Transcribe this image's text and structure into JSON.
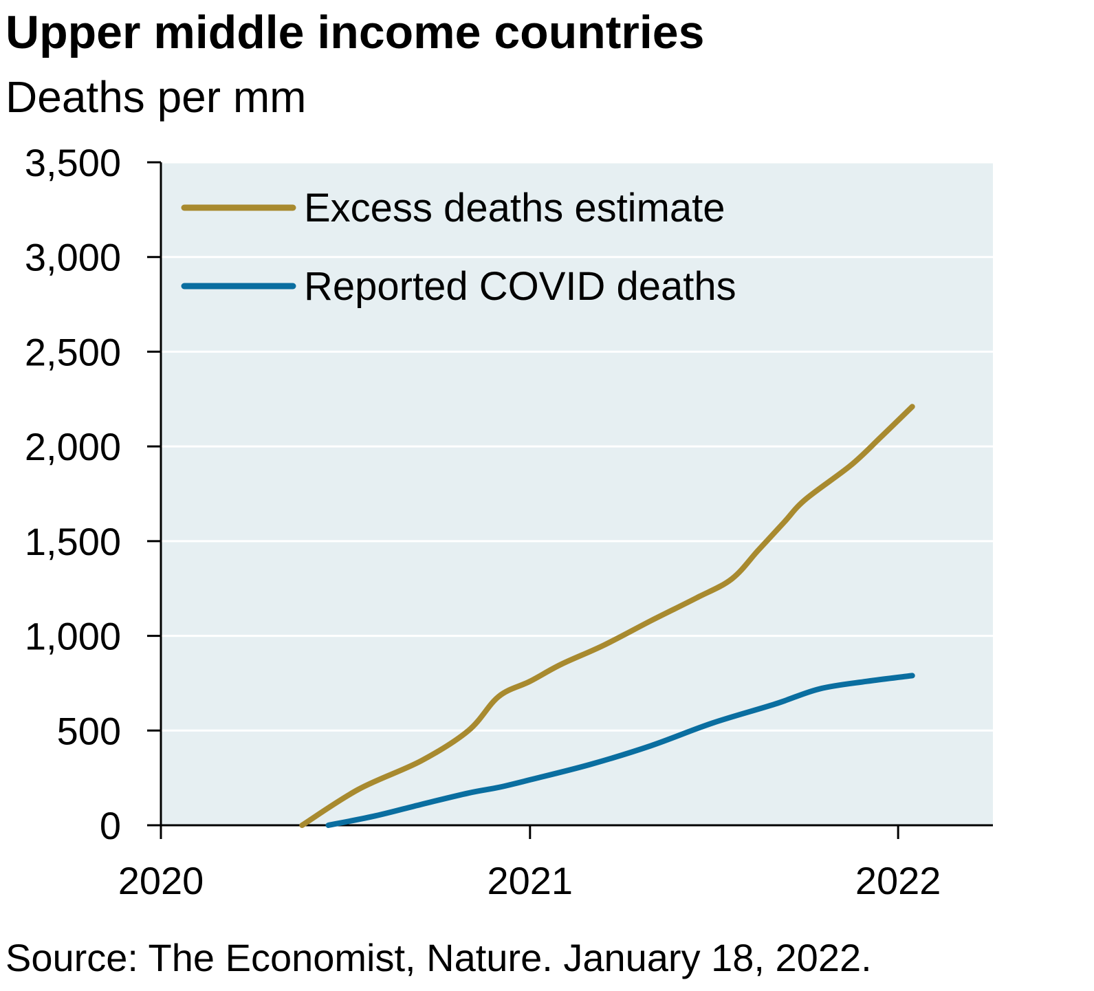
{
  "title": "Upper middle income countries",
  "subtitle": "Deaths per mm",
  "source": "Source: The Economist, Nature. January 18, 2022.",
  "colors": {
    "plot_bg": "#e6eff2",
    "grid": "#ffffff",
    "excess": "#a88a2f",
    "reported": "#0a6ea0"
  },
  "chart_data": {
    "type": "line",
    "ylim": [
      0,
      3500
    ],
    "xlim": [
      "2020-01-01",
      "2022-04-05"
    ],
    "y_ticks": [
      0,
      500,
      1000,
      1500,
      2000,
      2500,
      3000,
      3500
    ],
    "y_tick_labels": [
      "0",
      "500",
      "1,000",
      "1,500",
      "2,000",
      "2,500",
      "3,000",
      "3,500"
    ],
    "x_ticks": [
      "2020-01-01",
      "2021-01-01",
      "2022-01-01"
    ],
    "x_tick_labels": [
      "2020",
      "2021",
      "2022"
    ],
    "grid": true,
    "legend": "top-left",
    "series": [
      {
        "name": "Excess deaths estimate",
        "color_key": "excess",
        "points": [
          [
            "2020-05-20",
            0
          ],
          [
            "2020-07-15",
            190
          ],
          [
            "2020-09-15",
            340
          ],
          [
            "2020-11-01",
            500
          ],
          [
            "2020-12-01",
            680
          ],
          [
            "2021-01-01",
            760
          ],
          [
            "2021-02-01",
            850
          ],
          [
            "2021-03-15",
            950
          ],
          [
            "2021-05-01",
            1080
          ],
          [
            "2021-06-15",
            1200
          ],
          [
            "2021-07-20",
            1300
          ],
          [
            "2021-08-15",
            1450
          ],
          [
            "2021-09-10",
            1600
          ],
          [
            "2021-10-01",
            1720
          ],
          [
            "2021-11-15",
            1900
          ],
          [
            "2021-12-15",
            2050
          ],
          [
            "2022-01-15",
            2210
          ]
        ]
      },
      {
        "name": "Reported COVID deaths",
        "color_key": "reported",
        "points": [
          [
            "2020-06-15",
            0
          ],
          [
            "2020-08-01",
            50
          ],
          [
            "2020-09-15",
            110
          ],
          [
            "2020-11-01",
            170
          ],
          [
            "2020-12-01",
            200
          ],
          [
            "2021-01-01",
            240
          ],
          [
            "2021-03-01",
            320
          ],
          [
            "2021-05-01",
            420
          ],
          [
            "2021-07-01",
            540
          ],
          [
            "2021-09-01",
            640
          ],
          [
            "2021-10-15",
            720
          ],
          [
            "2021-12-01",
            760
          ],
          [
            "2022-01-15",
            790
          ]
        ]
      }
    ]
  }
}
